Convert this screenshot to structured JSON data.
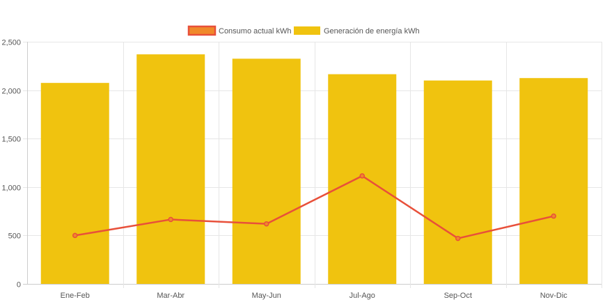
{
  "chart_data": {
    "type": "bar",
    "categories": [
      "Ene-Feb",
      "Mar-Abr",
      "May-Jun",
      "Jul-Ago",
      "Sep-Oct",
      "Nov-Dic"
    ],
    "series": [
      {
        "name": "Consumo actual kWh",
        "type": "line",
        "color": "#e8503a",
        "legend_fill": "#f0892a",
        "values": [
          500,
          665,
          620,
          1115,
          470,
          700
        ]
      },
      {
        "name": "Generación de energía kWh",
        "type": "bar",
        "color": "#f0c30f",
        "values": [
          2075,
          2370,
          2325,
          2165,
          2100,
          2125
        ]
      }
    ],
    "ylim": [
      0,
      2500
    ],
    "yticks": [
      0,
      500,
      1000,
      1500,
      2000,
      2500
    ],
    "ytick_labels": [
      "0",
      "500",
      "1,000",
      "1,500",
      "2,000",
      "2,500"
    ],
    "grid": true,
    "legend_position": "top-center"
  }
}
